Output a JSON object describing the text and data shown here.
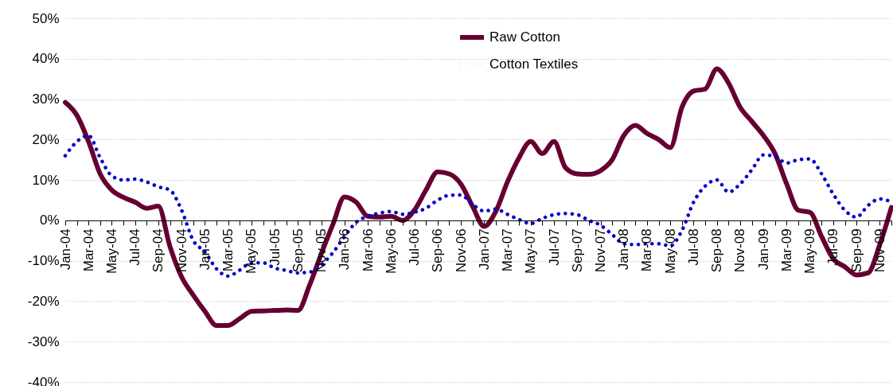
{
  "chart_data": {
    "type": "line",
    "categories": [
      "Jan-04",
      null,
      "Mar-04",
      null,
      "May-04",
      null,
      "Jul-04",
      null,
      "Sep-04",
      null,
      "Nov-04",
      null,
      "Jan-05",
      null,
      "Mar-05",
      null,
      "May-05",
      null,
      "Jul-05",
      null,
      "Sep-05",
      null,
      "Nov-05",
      null,
      "Jan-06",
      null,
      "Mar-06",
      null,
      "May-06",
      null,
      "Jul-06",
      null,
      "Sep-06",
      null,
      "Nov-06",
      null,
      "Jan-07",
      null,
      "Mar-07",
      null,
      "May-07",
      null,
      "Jul-07",
      null,
      "Sep-07",
      null,
      "Nov-07",
      null,
      "Jan-08",
      null,
      "Mar-08",
      null,
      "May-08",
      null,
      "Jul-08",
      null,
      "Sep-08",
      null,
      "Nov-08",
      null,
      "Jan-09",
      null,
      "Mar-09",
      null,
      "May-09",
      null,
      "Jul-09",
      null,
      "Sep-09",
      null,
      "Nov-09",
      null
    ],
    "series": [
      {
        "name": "Raw Cotton",
        "color": "#660033",
        "line_style": "solid",
        "values": [
          29.2,
          26,
          19.5,
          11.5,
          7.5,
          5.7,
          4.5,
          3,
          3.5,
          -6.5,
          -14,
          -18.5,
          -22.5,
          -26,
          -26,
          -24.3,
          -22.5,
          -22.4,
          -22.3,
          -22.2,
          -22.3,
          -16,
          -8.3,
          -1,
          5.8,
          4.5,
          1,
          0.8,
          1,
          0,
          2.5,
          7.5,
          12,
          11.5,
          9,
          3.5,
          -1.5,
          2.2,
          9.5,
          15.5,
          19.5,
          16.5,
          19.5,
          13,
          11.5,
          11.4,
          12.3,
          15,
          21,
          23.5,
          21.5,
          20,
          18,
          28,
          32,
          32.5,
          37.5,
          34,
          28,
          24.5,
          21,
          16.5,
          9,
          2.5,
          2,
          -4,
          -9.5,
          -11.5,
          -13.5,
          -13,
          -6,
          3.2
        ]
      },
      {
        "name": "Cotton Textiles",
        "color": "#0000cc",
        "line_style": "dotted",
        "values": [
          16,
          19.5,
          21,
          15.5,
          11,
          10,
          10.2,
          9.5,
          8.3,
          7.5,
          2.5,
          -5,
          -7.8,
          -12,
          -13.8,
          -12.3,
          -10.5,
          -10.5,
          -11.8,
          -12.4,
          -13,
          -12.8,
          -11,
          -8,
          -4,
          -0.5,
          1,
          1.8,
          2.2,
          1.5,
          2,
          3,
          5,
          6.2,
          6.3,
          4,
          2.3,
          2.8,
          1.5,
          0.2,
          -0.8,
          0.5,
          1.4,
          1.7,
          1.4,
          0,
          -1.2,
          -3.5,
          -5.8,
          -6,
          -5.8,
          -5.8,
          -6.3,
          -2.5,
          4.5,
          8.5,
          10,
          7,
          9,
          12.5,
          16.2,
          15.8,
          14.2,
          15,
          15.2,
          11.5,
          6.5,
          2.5,
          0.8,
          3.7,
          5.3,
          4.6
        ]
      }
    ],
    "ylim": [
      -40,
      50
    ],
    "yticks": [
      {
        "value": -40,
        "label": "-40%"
      },
      {
        "value": -30,
        "label": "-30%"
      },
      {
        "value": -20,
        "label": "-20%"
      },
      {
        "value": -10,
        "label": "-10%"
      },
      {
        "value": 0,
        "label": "0%"
      },
      {
        "value": 10,
        "label": "10%"
      },
      {
        "value": 20,
        "label": "20%"
      },
      {
        "value": 30,
        "label": "30%"
      },
      {
        "value": 40,
        "label": "40%"
      },
      {
        "value": 50,
        "label": "50%"
      }
    ],
    "grid": "y",
    "legend": "top"
  }
}
